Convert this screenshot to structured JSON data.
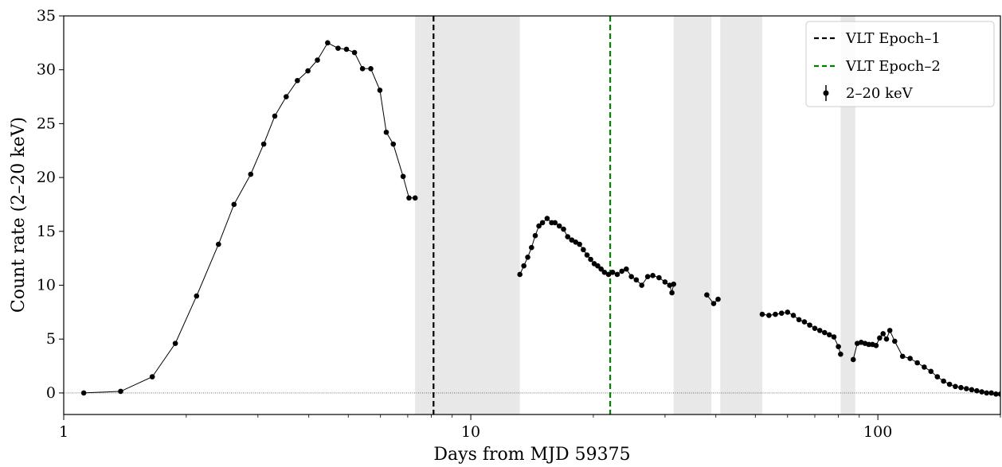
{
  "chart_data": {
    "type": "scatter",
    "xlabel": "Days from MJD 59375",
    "ylabel": "Count rate (2–20 keV)",
    "xscale": "log",
    "xlim": [
      1,
      200
    ],
    "ylim": [
      -2,
      35
    ],
    "x_tick_labels": [
      "1",
      "10",
      "100"
    ],
    "y_tick_labels": [
      "0",
      "5",
      "10",
      "15",
      "20",
      "25",
      "30",
      "35"
    ],
    "legend_placement": "top-right",
    "grid": false,
    "zero_line": true,
    "shaded_gaps": [
      [
        7.3,
        13.2
      ],
      [
        31.5,
        39.0
      ],
      [
        41.0,
        52.0
      ],
      [
        81.0,
        88.0
      ]
    ],
    "vlines": [
      {
        "name": "VLT Epoch–1",
        "x": 8.1,
        "color": "#000000",
        "style": "dashed"
      },
      {
        "name": "VLT Epoch–2",
        "x": 22.0,
        "color": "#008000",
        "style": "dashed"
      }
    ],
    "series": [
      {
        "name": "2–20 keV",
        "color": "#000000",
        "connected": true,
        "x": [
          1.12,
          1.38,
          1.65,
          1.88,
          2.12,
          2.4,
          2.62,
          2.88,
          3.1,
          3.3,
          3.52,
          3.75,
          3.98,
          4.2,
          4.45,
          4.72,
          4.95,
          5.18,
          5.42,
          5.68,
          5.98,
          6.2,
          6.45,
          6.82,
          7.05,
          7.3
        ],
        "y": [
          0.0,
          0.15,
          1.5,
          4.6,
          9.0,
          13.8,
          17.5,
          20.3,
          23.1,
          25.7,
          27.5,
          29.0,
          29.9,
          30.9,
          32.5,
          32.0,
          31.9,
          31.6,
          30.1,
          30.1,
          28.1,
          24.2,
          23.1,
          20.1,
          18.1,
          18.1
        ]
      },
      {
        "name": "",
        "color": "#000000",
        "connected": true,
        "x": [
          13.2,
          13.5,
          13.8,
          14.1,
          14.4,
          14.7,
          15.0,
          15.4,
          15.8,
          16.1,
          16.5,
          16.9,
          17.3,
          17.7,
          18.1,
          18.5,
          18.9,
          19.3,
          19.7,
          20.1,
          20.5,
          20.9,
          21.3,
          21.8,
          22.3,
          22.9,
          23.5,
          24.1,
          24.8,
          25.5,
          26.3,
          27.2,
          28.0,
          29.0,
          30.0,
          30.8,
          31.2,
          31.5
        ],
        "y": [
          11.0,
          11.8,
          12.6,
          13.5,
          14.6,
          15.5,
          15.8,
          16.2,
          15.8,
          15.8,
          15.5,
          15.2,
          14.5,
          14.2,
          14.0,
          13.8,
          13.3,
          12.8,
          12.4,
          12.0,
          11.8,
          11.5,
          11.2,
          11.0,
          11.2,
          11.0,
          11.3,
          11.5,
          10.8,
          10.5,
          10.0,
          10.8,
          10.9,
          10.7,
          10.3,
          10.0,
          9.3,
          10.1
        ]
      },
      {
        "name": "",
        "color": "#000000",
        "connected": true,
        "x": [
          38.0,
          39.5,
          40.5
        ],
        "y": [
          9.1,
          8.3,
          8.7
        ]
      },
      {
        "name": "",
        "color": "#000000",
        "connected": true,
        "x": [
          52.0,
          54.0,
          56.0,
          58.0,
          60.0,
          62.0,
          64.0,
          66.0,
          68.0,
          70.0,
          72.0,
          74.0,
          76.0,
          78.0,
          80.0,
          81.0
        ],
        "y": [
          7.3,
          7.2,
          7.3,
          7.4,
          7.5,
          7.2,
          6.8,
          6.6,
          6.3,
          6.0,
          5.8,
          5.6,
          5.4,
          5.2,
          4.3,
          3.6
        ]
      },
      {
        "name": "",
        "color": "#000000",
        "connected": true,
        "x": [
          87.0,
          89.0,
          91.0,
          93.0,
          95.0,
          97.0,
          99.0,
          101.0,
          103.0,
          105.0,
          107.0,
          110.0,
          115.0,
          120.0,
          125.0,
          130.0,
          135.0,
          140.0,
          145.0,
          150.0,
          155.0,
          160.0,
          165.0,
          170.0,
          175.0,
          180.0,
          185.0,
          190.0,
          195.0,
          200.0
        ],
        "y": [
          3.1,
          4.6,
          4.7,
          4.6,
          4.5,
          4.5,
          4.4,
          5.1,
          5.5,
          5.0,
          5.8,
          4.8,
          3.4,
          3.2,
          2.8,
          2.4,
          2.0,
          1.5,
          1.1,
          0.8,
          0.6,
          0.5,
          0.4,
          0.3,
          0.2,
          0.1,
          0.0,
          0.0,
          -0.1,
          -0.1
        ]
      }
    ]
  }
}
